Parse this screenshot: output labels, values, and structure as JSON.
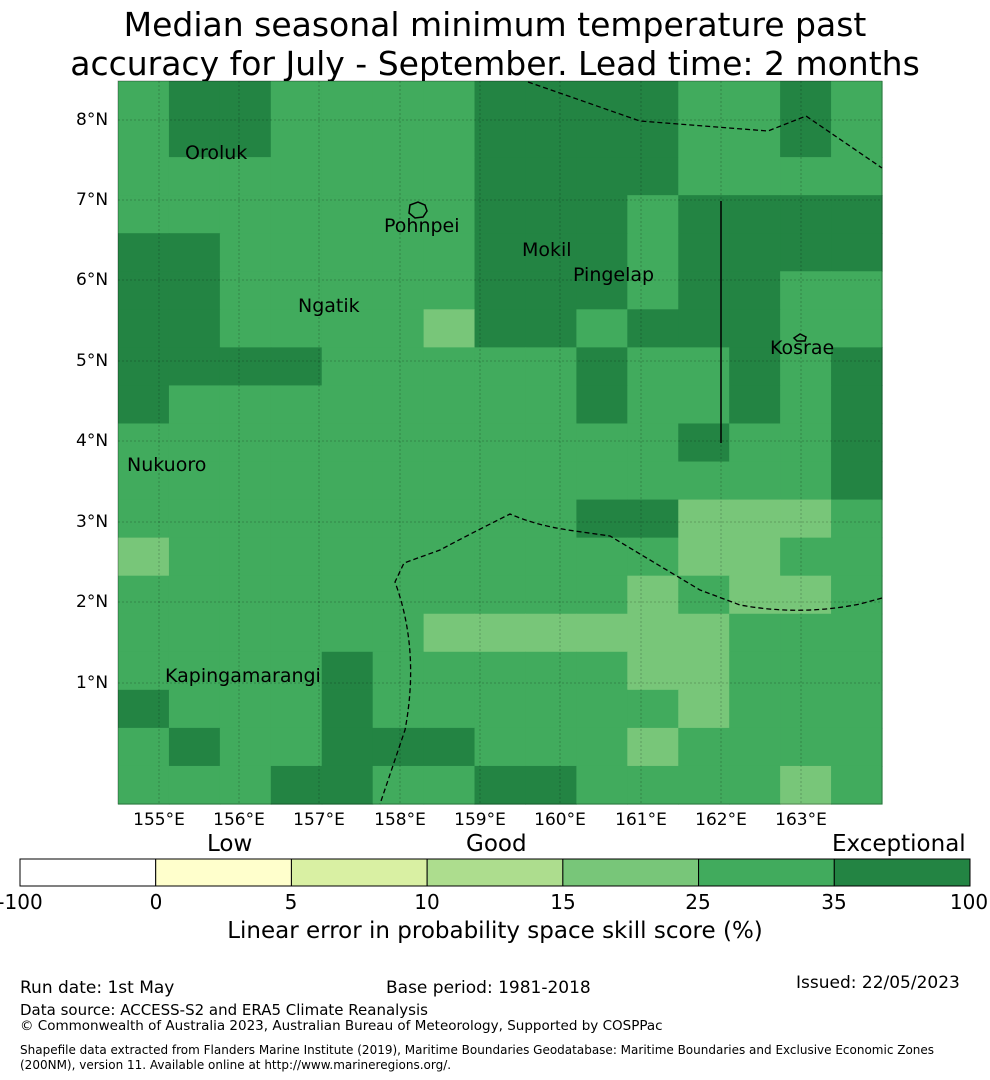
{
  "title_line1": "Median seasonal minimum temperature past",
  "title_line2": "accuracy for July - September. Lead time: 2 months",
  "map": {
    "lat_labels": [
      "8°N",
      "7°N",
      "6°N",
      "5°N",
      "4°N",
      "3°N",
      "2°N",
      "1°N"
    ],
    "lon_labels": [
      "155°E",
      "156°E",
      "157°E",
      "158°E",
      "159°E",
      "160°E",
      "161°E",
      "162°E",
      "163°E"
    ],
    "places": [
      "Oroluk",
      "Pohnpei",
      "Mokil",
      "Pingelap",
      "Ngatik",
      "Kosrae",
      "Nukuoro",
      "Kapingamarangi"
    ],
    "grid": [
      [
        3,
        4,
        4,
        3,
        3,
        3,
        3,
        4,
        4,
        4,
        4,
        3,
        3,
        4,
        3
      ],
      [
        3,
        4,
        4,
        3,
        3,
        3,
        3,
        4,
        4,
        4,
        4,
        3,
        3,
        4,
        3
      ],
      [
        3,
        3,
        3,
        3,
        3,
        3,
        3,
        4,
        4,
        4,
        4,
        3,
        3,
        3,
        3
      ],
      [
        3,
        3,
        3,
        3,
        3,
        3,
        3,
        4,
        4,
        4,
        3,
        4,
        4,
        4,
        4
      ],
      [
        4,
        4,
        3,
        3,
        3,
        3,
        3,
        4,
        4,
        4,
        3,
        4,
        4,
        4,
        4
      ],
      [
        4,
        4,
        3,
        3,
        3,
        3,
        3,
        4,
        4,
        4,
        3,
        4,
        4,
        3,
        3
      ],
      [
        4,
        4,
        3,
        3,
        3,
        3,
        2,
        4,
        4,
        3,
        4,
        4,
        4,
        3,
        3
      ],
      [
        4,
        4,
        4,
        4,
        3,
        3,
        3,
        3,
        3,
        4,
        3,
        3,
        4,
        3,
        4
      ],
      [
        4,
        3,
        3,
        3,
        3,
        3,
        3,
        3,
        3,
        4,
        3,
        3,
        4,
        3,
        4
      ],
      [
        3,
        3,
        3,
        3,
        3,
        3,
        3,
        3,
        3,
        3,
        3,
        4,
        3,
        3,
        4
      ],
      [
        3,
        3,
        3,
        3,
        3,
        3,
        3,
        3,
        3,
        3,
        3,
        3,
        3,
        3,
        4
      ],
      [
        3,
        3,
        3,
        3,
        3,
        3,
        3,
        3,
        3,
        4,
        4,
        2,
        2,
        2,
        3
      ],
      [
        2,
        3,
        3,
        3,
        3,
        3,
        3,
        3,
        3,
        3,
        3,
        2,
        2,
        3,
        3
      ],
      [
        3,
        3,
        3,
        3,
        3,
        3,
        3,
        3,
        3,
        3,
        2,
        3,
        2,
        2,
        3
      ],
      [
        3,
        3,
        3,
        3,
        3,
        3,
        2,
        2,
        2,
        2,
        2,
        2,
        3,
        3,
        3
      ],
      [
        3,
        3,
        3,
        3,
        4,
        3,
        3,
        3,
        3,
        3,
        2,
        2,
        3,
        3,
        3
      ],
      [
        4,
        3,
        3,
        3,
        4,
        3,
        3,
        3,
        3,
        3,
        3,
        2,
        3,
        3,
        3
      ],
      [
        3,
        4,
        3,
        3,
        4,
        4,
        4,
        3,
        3,
        3,
        2,
        3,
        3,
        3,
        3
      ],
      [
        3,
        3,
        3,
        4,
        4,
        3,
        3,
        4,
        4,
        3,
        3,
        3,
        3,
        2,
        3
      ]
    ]
  },
  "legend": {
    "categories": [
      "Low",
      "Good",
      "Exceptional"
    ],
    "ticks": [
      "-100",
      "0",
      "5",
      "10",
      "15",
      "25",
      "35",
      "100"
    ],
    "colors": [
      "#ffffff",
      "#ffffcc",
      "#d9f0a3",
      "#addd8e",
      "#78c679",
      "#41ab5d",
      "#238443"
    ],
    "title": "Linear error in probability space skill score (%)"
  },
  "footer": {
    "run_date": "Run date: 1st May",
    "base_period": "Base period: 1981-2018",
    "issued": "Issued: 22/05/2023",
    "data_source": "Data source: ACCESS-S2 and ERA5 Climate Reanalysis",
    "copyright": "© Commonwealth of Australia 2023, Australian Bureau of Meteorology, Supported by COSPPac",
    "shapefile_line1": "Shapefile data extracted from Flanders Marine Institute (2019), Maritime Boundaries Geodatabase: Maritime Boundaries and Exclusive Economic Zones",
    "shapefile_line2": "(200NM), version 11. Available online at http://www.marineregions.org/."
  }
}
